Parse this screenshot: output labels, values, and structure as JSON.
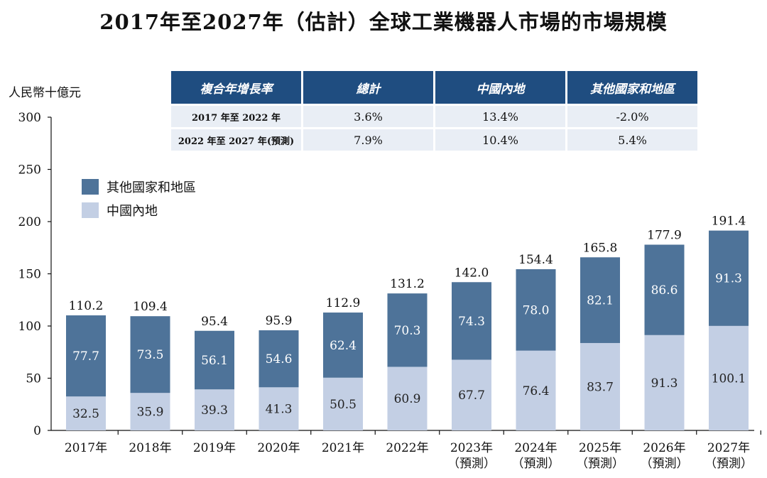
{
  "title": "2017年至2027年（估計）全球工業機器人市場的市場規模",
  "colors": {
    "other": "#4e7399",
    "china": "#c3cfe4",
    "header": "#1f4d80",
    "row": "#e9eef5"
  },
  "table": {
    "headers": [
      "複合年增長率",
      "總計",
      "中國內地",
      "其他國家和地區"
    ],
    "rows": [
      [
        "2017 年至 2022 年",
        "3.6%",
        "13.4%",
        "-2.0%"
      ],
      [
        "2022 年至 2027 年(預測)",
        "7.9%",
        "10.4%",
        "5.4%"
      ]
    ]
  },
  "chart_data": {
    "type": "bar",
    "stacked": true,
    "ylabel": "人民幣十億元",
    "ylim": [
      0,
      300
    ],
    "yticks": [
      0,
      50,
      100,
      150,
      200,
      250,
      300
    ],
    "categories": [
      [
        "2017年"
      ],
      [
        "2018年"
      ],
      [
        "2019年"
      ],
      [
        "2020年"
      ],
      [
        "2021年"
      ],
      [
        "2022年"
      ],
      [
        "2023年",
        "（預測）"
      ],
      [
        "2024年",
        "（預測）"
      ],
      [
        "2025年",
        "（預測）"
      ],
      [
        "2026年",
        "（預測）"
      ],
      [
        "2027年",
        "（預測）"
      ]
    ],
    "series": [
      {
        "name": "中國內地",
        "values": [
          32.5,
          35.9,
          39.3,
          41.3,
          50.5,
          60.9,
          67.7,
          76.4,
          83.7,
          91.3,
          100.1
        ]
      },
      {
        "name": "其他國家和地區",
        "values": [
          77.7,
          73.5,
          56.1,
          54.6,
          62.4,
          70.3,
          74.3,
          78.0,
          82.1,
          86.6,
          91.3
        ]
      }
    ],
    "totals": [
      110.2,
      109.4,
      95.4,
      95.9,
      112.9,
      131.2,
      142.0,
      154.4,
      165.8,
      177.9,
      191.4
    ],
    "legend": [
      {
        "label": "其他國家和地區",
        "series": 1
      },
      {
        "label": "中國內地",
        "series": 0
      }
    ],
    "legend_position": "top-left",
    "grid": false
  }
}
